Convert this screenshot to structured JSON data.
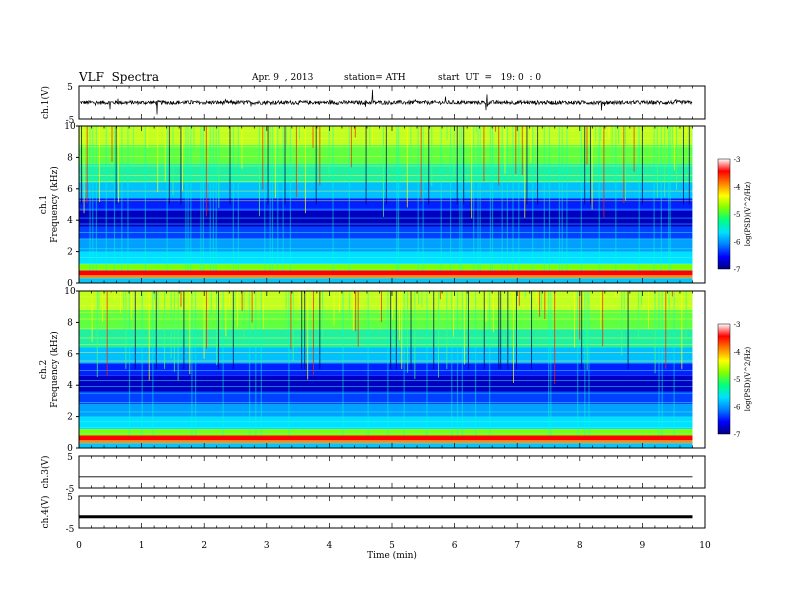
{
  "header": {
    "title": "VLF  Spectra",
    "date": "Apr. 9  , 2013",
    "station": "station= ATH",
    "start": "start  UT  =   19: 0  : 0"
  },
  "colors": {
    "spectrogram_scale": [
      "#000080",
      "#0000ff",
      "#0080ff",
      "#00e0ff",
      "#00ff80",
      "#80ff00",
      "#ffff00",
      "#ff8000",
      "#ff0000",
      "#ffffff"
    ],
    "trace": "#000000"
  },
  "chart_data": [
    {
      "type": "line",
      "name": "ch1-waveform",
      "ylabel": "ch.1(V)",
      "ylim": [
        -5,
        5
      ],
      "yticks": [
        "5",
        "-5"
      ],
      "description_values": {
        "baseline_v": 0.0,
        "noise_amplitude_v": 1.0,
        "spike_amplitude_v": 3.5
      },
      "xlim": [
        0,
        10
      ]
    },
    {
      "type": "heatmap",
      "name": "ch1-spectrogram",
      "ylabel": "ch.1\nFrequency  (kHz)",
      "ylim": [
        0,
        10
      ],
      "yticks": [
        "0",
        "2",
        "4",
        "6",
        "8",
        "10"
      ],
      "xlim": [
        0,
        10
      ],
      "data_end_min": 9.8,
      "colorbar": {
        "label": "log(PSD)(V^2/Hz)",
        "range": [
          -7,
          -3
        ],
        "ticks": [
          "-3",
          "-4",
          "-5",
          "-6",
          "-7"
        ]
      }
    },
    {
      "type": "heatmap",
      "name": "ch2-spectrogram",
      "ylabel": "ch.2\nFrequency  (kHz)",
      "ylim": [
        0,
        10
      ],
      "yticks": [
        "0",
        "2",
        "4",
        "6",
        "8",
        "10"
      ],
      "xlim": [
        0,
        10
      ],
      "data_end_min": 9.8,
      "colorbar": {
        "label": "log(PSD)(V^2/Hz)",
        "range": [
          -7,
          -3
        ],
        "ticks": [
          "-3",
          "-4",
          "-5",
          "-6",
          "-7"
        ]
      }
    },
    {
      "type": "line",
      "name": "ch3-waveform",
      "ylabel": "ch.3(V)",
      "ylim": [
        -5,
        5
      ],
      "yticks": [
        "5",
        "-5"
      ],
      "xlim": [
        0,
        10
      ]
    },
    {
      "type": "line",
      "name": "ch4-waveform",
      "ylabel": "ch.4(V)",
      "ylim": [
        -5,
        5
      ],
      "yticks": [
        "5",
        "-5"
      ],
      "xlim": [
        0,
        10
      ]
    }
  ],
  "xaxis": {
    "label": "Time  (min)",
    "ticks": [
      "0",
      "1",
      "2",
      "3",
      "4",
      "5",
      "6",
      "7",
      "8",
      "9",
      "10"
    ]
  }
}
